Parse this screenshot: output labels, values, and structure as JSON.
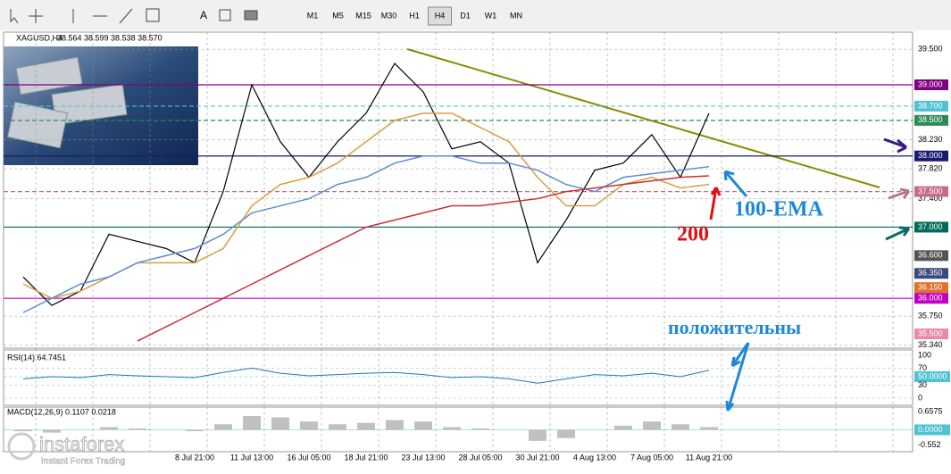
{
  "toolbar": {
    "text_tool": "A",
    "timeframes": [
      "M1",
      "M5",
      "M15",
      "M30",
      "H1",
      "H4",
      "D1",
      "W1",
      "MN"
    ],
    "active": "H4"
  },
  "chart_data": {
    "type": "line",
    "title": "XAGUSD,H4",
    "quote": "38.564 38.599 38.538 38.570",
    "categories": [
      null,
      null,
      null,
      null,
      null,
      null,
      "8 Jul 21:00",
      null,
      "11 Jul 13:00",
      null,
      "16 Jul 05:00",
      null,
      "18 Jul 21:00",
      null,
      "23 Jul 13:00",
      null,
      "28 Jul 05:00",
      null,
      "30 Jul 21:00",
      null,
      "4 Aug 13:00",
      null,
      "7 Aug 05:00",
      null,
      "11 Aug 21:00"
    ],
    "series": [
      {
        "color": "#000000",
        "values": [
          36.3,
          35.9,
          36.1,
          36.9,
          36.8,
          36.7,
          36.5,
          37.5,
          39.0,
          38.2,
          37.7,
          38.2,
          38.6,
          39.3,
          38.9,
          38.1,
          38.2,
          37.9,
          36.5,
          37.1,
          37.8,
          37.9,
          38.3,
          37.7,
          38.6
        ]
      },
      {
        "color": "#d8a040",
        "values": [
          36.2,
          36.0,
          36.1,
          36.3,
          36.5,
          36.5,
          36.5,
          36.7,
          37.3,
          37.6,
          37.7,
          37.9,
          38.2,
          38.5,
          38.6,
          38.6,
          38.4,
          38.2,
          37.7,
          37.3,
          37.3,
          37.6,
          37.7,
          37.55,
          37.6
        ]
      },
      {
        "color": "#5b8dd6",
        "values": [
          35.8,
          36.0,
          36.2,
          36.3,
          36.5,
          36.6,
          36.7,
          36.9,
          37.2,
          37.3,
          37.4,
          37.6,
          37.7,
          37.9,
          38.0,
          38.0,
          37.9,
          37.9,
          37.8,
          37.6,
          37.5,
          37.7,
          37.75,
          37.8,
          37.85
        ]
      },
      {
        "color": "#c83232",
        "values": [
          null,
          null,
          null,
          null,
          35.4,
          35.6,
          35.8,
          36.0,
          36.2,
          36.4,
          36.6,
          36.8,
          37.0,
          37.1,
          37.2,
          37.3,
          37.3,
          37.35,
          37.4,
          37.5,
          37.55,
          37.6,
          37.65,
          37.7,
          37.72
        ]
      }
    ],
    "ylim": [
      35.3,
      39.74
    ],
    "yticks": [
      {
        "value": 39.5,
        "label": "39.500"
      },
      {
        "value": 38.23,
        "label": "38.230"
      },
      {
        "value": 37.82,
        "label": "37.820"
      },
      {
        "value": 37.4,
        "label": "37.400"
      },
      {
        "value": 35.75,
        "label": "35.750"
      },
      {
        "value": 35.34,
        "label": "35.340"
      }
    ],
    "levels": [
      {
        "value": 39.0,
        "label": "39.000",
        "color": "#800080",
        "style": "solid"
      },
      {
        "value": 38.7,
        "label": "38.700",
        "color": "#4fc3d0",
        "style": "dash"
      },
      {
        "value": 38.5,
        "label": "38.500",
        "color": "#2e8b57",
        "style": "dash"
      },
      {
        "value": 38.0,
        "label": "38.000",
        "color": "#191970",
        "style": "solid"
      },
      {
        "value": 37.5,
        "label": "37.500",
        "color": "#c76b8c",
        "style": "dash"
      },
      {
        "value": 37.0,
        "label": "37.000",
        "color": "#006b5b",
        "style": "solid"
      },
      {
        "value": 36.6,
        "label": "36.600",
        "color": "#555555",
        "style": "none"
      },
      {
        "value": 36.35,
        "label": "36.350",
        "color": "#3a4a7a",
        "style": "none"
      },
      {
        "value": 36.15,
        "label": "36.150",
        "color": "#e0702a",
        "style": "none"
      },
      {
        "value": 36.0,
        "label": "36.000",
        "color": "#c000c0",
        "style": "solid"
      },
      {
        "value": 35.5,
        "label": "35.500",
        "color": "#e88aa8",
        "style": "none"
      }
    ],
    "annotations": [
      "100-EMA",
      "200",
      "положительны"
    ]
  },
  "rsi": {
    "title": "RSI(14) 64.7451",
    "color": "#1f77b4",
    "ylim": [
      0,
      100
    ],
    "yticks": [
      100,
      70,
      {
        "value": 50,
        "label": "50.0000"
      },
      30,
      0
    ],
    "values": [
      45,
      50,
      48,
      55,
      52,
      50,
      48,
      60,
      70,
      58,
      52,
      55,
      58,
      60,
      55,
      48,
      50,
      45,
      35,
      45,
      55,
      52,
      58,
      50,
      65
    ]
  },
  "macd": {
    "title": "MACD(12,26,9) 0.1107 0.0218",
    "color": "#c0c0c0",
    "ylim": [
      -0.79,
      0.822
    ],
    "yticks": [
      0.6575,
      {
        "value": 0,
        "label": "0.0000"
      },
      -0.552
    ],
    "values": [
      -0.05,
      -0.1,
      0,
      0.1,
      0.05,
      0,
      -0.05,
      0.2,
      0.5,
      0.45,
      0.3,
      0.2,
      0.25,
      0.35,
      0.3,
      0.1,
      0.05,
      0,
      -0.4,
      -0.3,
      0,
      0.15,
      0.3,
      0.2,
      0.1
    ]
  },
  "watermark": {
    "brand": "instaforex",
    "tagline": "Instant Forex Trading"
  }
}
